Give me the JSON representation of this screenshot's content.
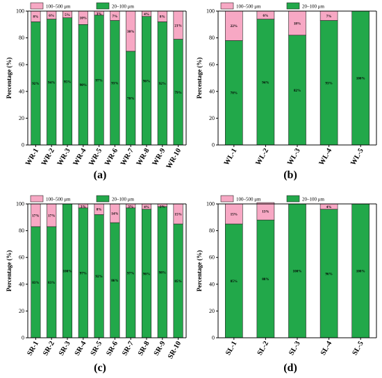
{
  "colors": {
    "fine": "#22a84a",
    "coarse": "#f7a8c4"
  },
  "chart_data": [
    {
      "id": "a",
      "type": "bar",
      "stacked": true,
      "panel_label": "(a)",
      "ylabel": "Percentage (%)",
      "ylim": [
        0,
        100
      ],
      "yticks": [
        0,
        20,
        40,
        60,
        80,
        100
      ],
      "legend": [
        "100–500 μm",
        "20–100 μm"
      ],
      "categories": [
        "WR-1",
        "WR-2",
        "WR-3",
        "WR-4",
        "WR-5",
        "WR-6",
        "WR-7",
        "WR-8",
        "WR-9",
        "WR-10"
      ],
      "series": [
        {
          "name": "20–100 μm",
          "values": [
            92,
            94,
            95,
            90,
            97,
            93,
            70,
            96,
            92,
            79
          ],
          "labels": [
            "92%",
            "94%",
            "95%",
            "90%",
            "97%",
            "93%",
            "70%",
            "96%",
            "92%",
            "79%"
          ]
        },
        {
          "name": "100–500 μm",
          "values": [
            8,
            6,
            5,
            10,
            3,
            7,
            30,
            4,
            8,
            21
          ],
          "labels": [
            "8%",
            "6%",
            "5%",
            "10%",
            "3%",
            "7%",
            "30%",
            "4%",
            "8%",
            "21%"
          ]
        }
      ]
    },
    {
      "id": "b",
      "type": "bar",
      "stacked": true,
      "panel_label": "(b)",
      "ylabel": "Percentage (%)",
      "ylim": [
        0,
        100
      ],
      "yticks": [
        0,
        20,
        40,
        60,
        80,
        100
      ],
      "legend": [
        "100–500 μm",
        "20–100 μm"
      ],
      "categories": [
        "WL-1",
        "WL-2",
        "WL-3",
        "WL-4",
        "WL-5"
      ],
      "series": [
        {
          "name": "20–100 μm",
          "values": [
            78,
            94,
            82,
            93,
            100
          ],
          "labels": [
            "78%",
            "94%",
            "82%",
            "93%",
            "100%"
          ]
        },
        {
          "name": "100–500 μm",
          "values": [
            22,
            6,
            18,
            7,
            0
          ],
          "labels": [
            "22%",
            "6%",
            "18%",
            "7%",
            ""
          ]
        }
      ]
    },
    {
      "id": "c",
      "type": "bar",
      "stacked": true,
      "panel_label": "(c)",
      "ylabel": "Percentage (%)",
      "ylim": [
        0,
        100
      ],
      "yticks": [
        0,
        20,
        40,
        60,
        80,
        100
      ],
      "legend": [
        "100–500 μm",
        "20–100 μm"
      ],
      "categories": [
        "SR-1",
        "SR-2",
        "SR-3",
        "SR-4",
        "SR-5",
        "SR-6",
        "SR-7",
        "SR-8",
        "SR-9",
        "SR-10"
      ],
      "series": [
        {
          "name": "20–100 μm",
          "values": [
            83,
            83,
            100,
            97,
            92,
            86,
            97,
            96,
            98,
            85
          ],
          "labels": [
            "83%",
            "83%",
            "100%",
            "97%",
            "92%",
            "86%",
            "97%",
            "96%",
            "98%",
            "85%"
          ]
        },
        {
          "name": "100–500 μm",
          "values": [
            17,
            17,
            0,
            3,
            8,
            14,
            3,
            4,
            2,
            15
          ],
          "labels": [
            "17%",
            "17%",
            "",
            "3%",
            "8%",
            "14%",
            "3%",
            "4%",
            "2%",
            "15%"
          ]
        }
      ]
    },
    {
      "id": "d",
      "type": "bar",
      "stacked": true,
      "panel_label": "(d)",
      "ylabel": "Percentage (%)",
      "ylim": [
        0,
        100
      ],
      "yticks": [
        0,
        20,
        40,
        60,
        80,
        100
      ],
      "legend": [
        "100–500 μm",
        "20–100 μm"
      ],
      "categories": [
        "SL-1",
        "SL-2",
        "SL-3",
        "SL-4",
        "SL-5"
      ],
      "series": [
        {
          "name": "20–100 μm",
          "values": [
            85,
            88,
            100,
            96,
            100
          ],
          "labels": [
            "85%",
            "88%",
            "100%",
            "96%",
            "100%"
          ]
        },
        {
          "name": "100–500 μm",
          "values": [
            15,
            13,
            0,
            4,
            0
          ],
          "labels": [
            "15%",
            "13%",
            "",
            "4%",
            ""
          ]
        }
      ]
    }
  ]
}
